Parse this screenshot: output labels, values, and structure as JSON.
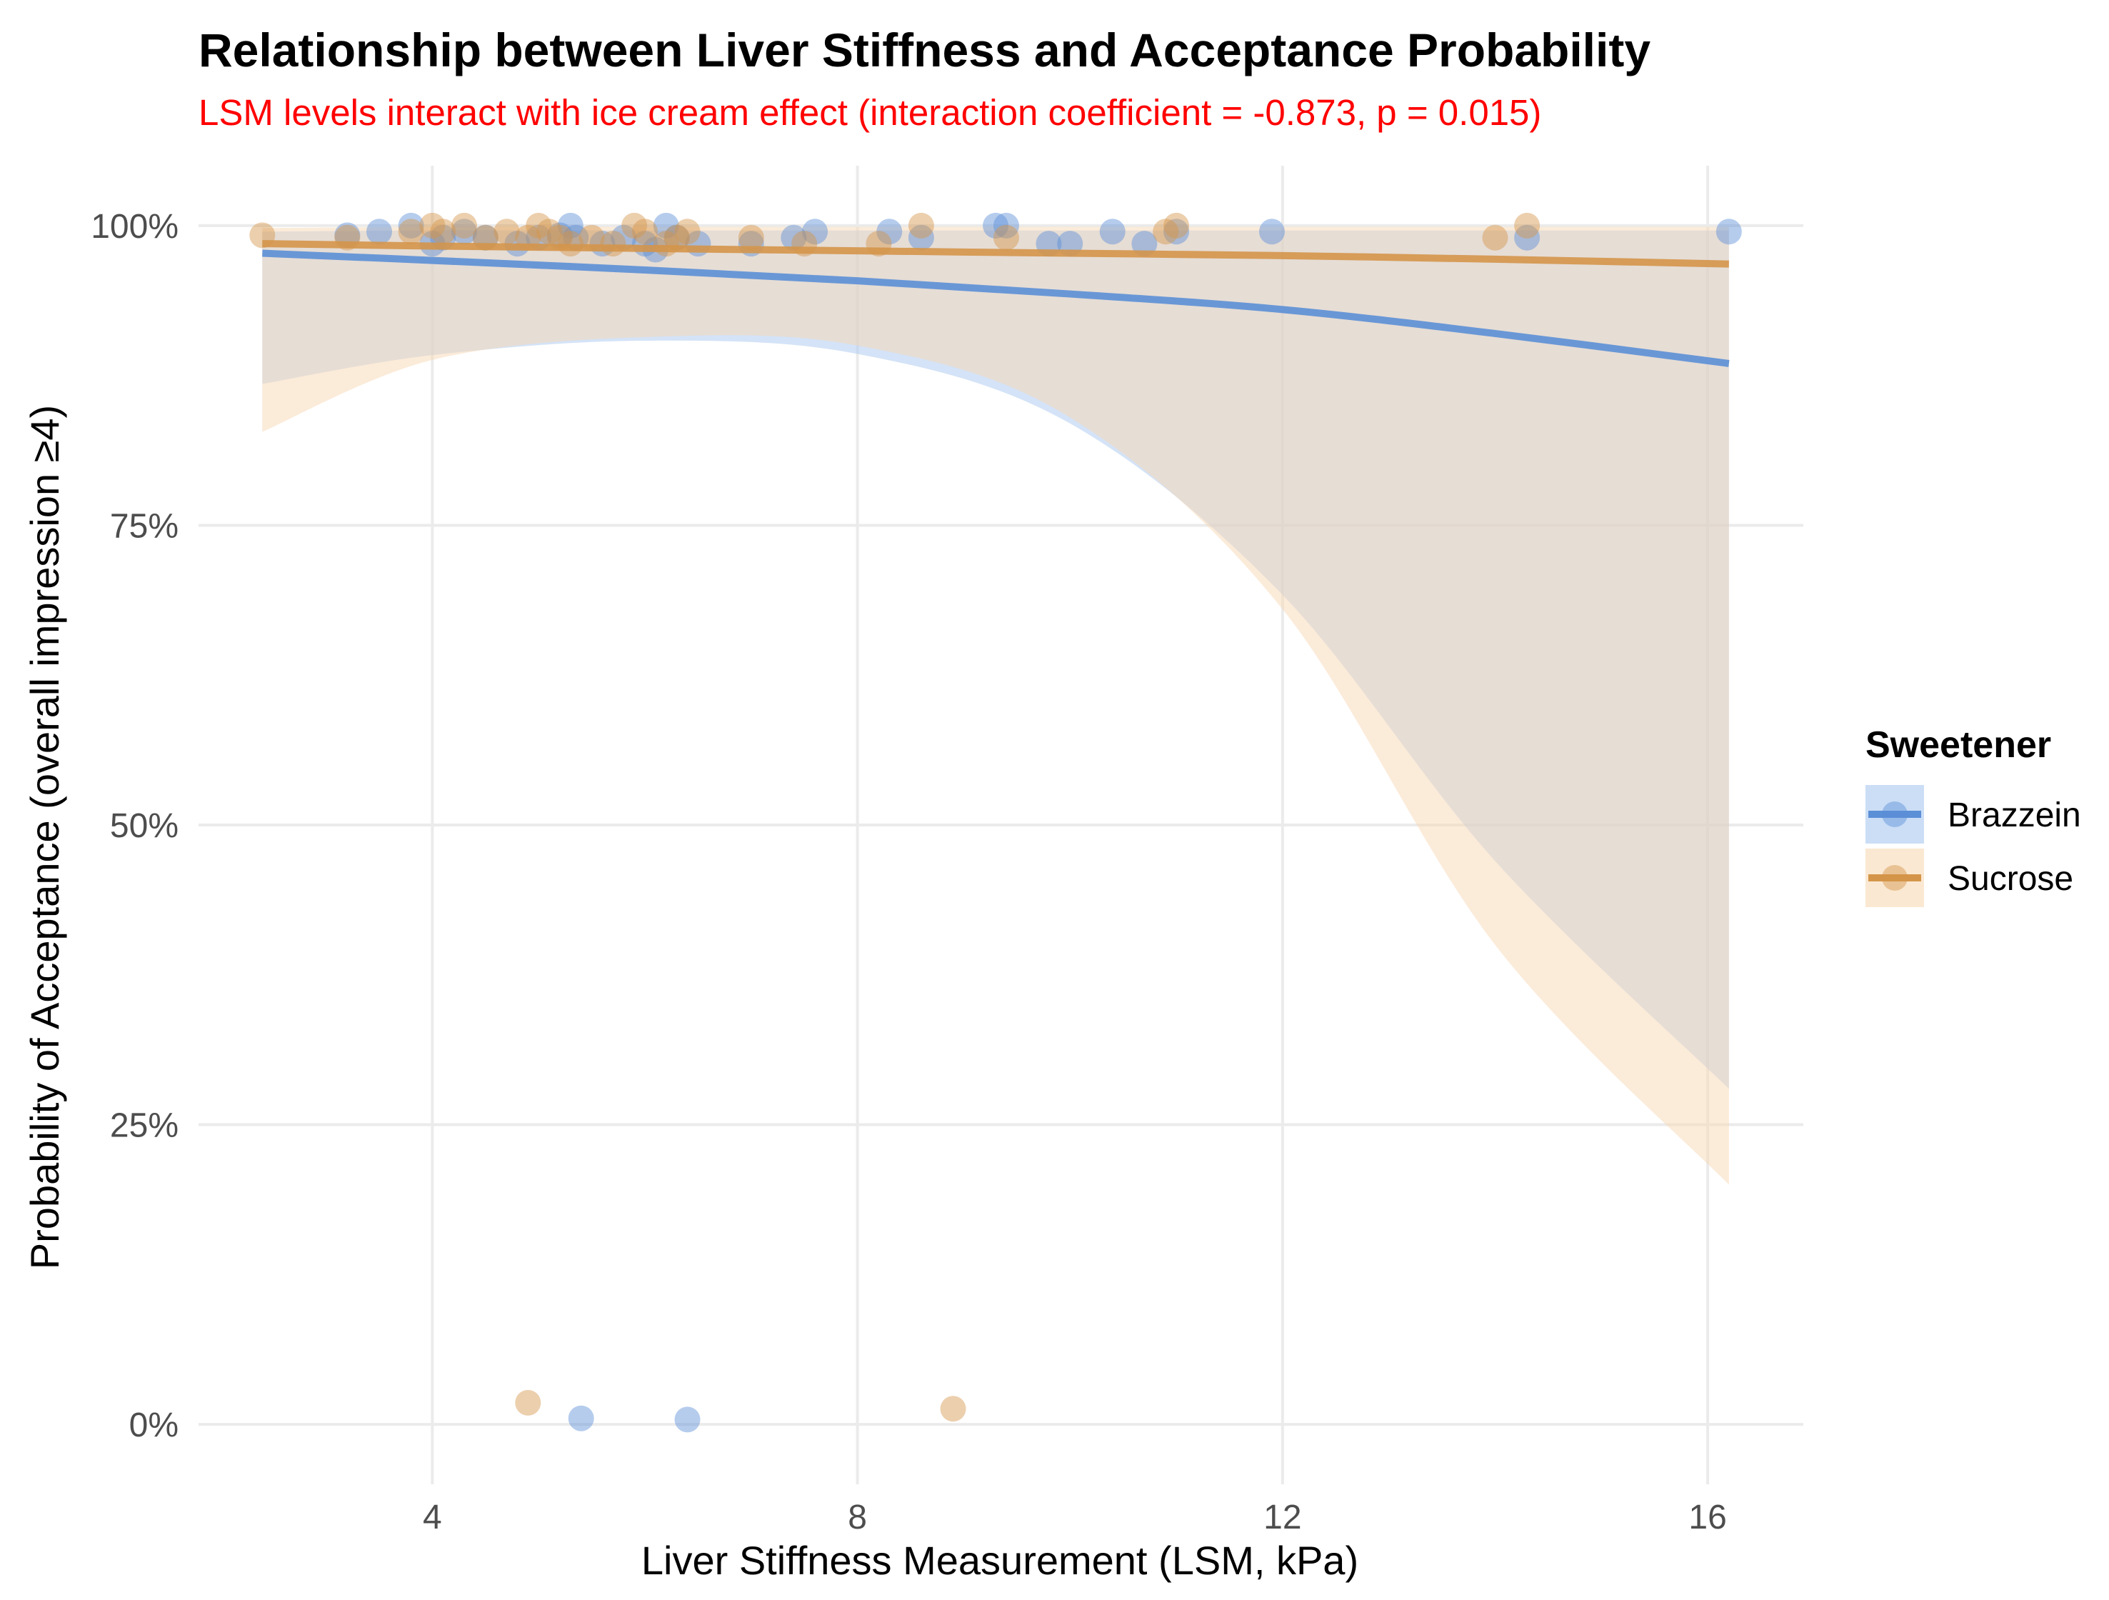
{
  "chart_data": {
    "type": "scatter",
    "title": "Relationship between Liver Stiffness and Acceptance Probability",
    "subtitle": "LSM levels interact with ice cream effect (interaction coefficient = -0.873, p = 0.015)",
    "xlabel": "Liver Stiffness Measurement (LSM, kPa)",
    "ylabel": "Probability of Acceptance (overall impression ≥4)",
    "xlim": [
      1.8,
      16.9
    ],
    "ylim": [
      -0.05,
      1.05
    ],
    "x_ticks": [
      4,
      8,
      12,
      16
    ],
    "x_tick_labels": [
      "4",
      "8",
      "12",
      "16"
    ],
    "y_ticks": [
      0,
      0.25,
      0.5,
      0.75,
      1.0
    ],
    "y_tick_labels": [
      "0%",
      "25%",
      "50%",
      "75%",
      "100%"
    ],
    "grid": true,
    "legend": {
      "title": "Sweetener",
      "position": "right"
    },
    "series": [
      {
        "name": "Brazzein",
        "color": "#5b8fd6",
        "fill_color": "#a9c8f0",
        "points": [
          [
            3.2,
            0.992
          ],
          [
            3.5,
            0.995
          ],
          [
            3.8,
            1.0
          ],
          [
            4.0,
            0.985
          ],
          [
            4.1,
            0.99
          ],
          [
            4.3,
            0.995
          ],
          [
            4.5,
            0.99
          ],
          [
            4.8,
            0.985
          ],
          [
            5.0,
            0.99
          ],
          [
            5.2,
            0.992
          ],
          [
            5.3,
            1.0
          ],
          [
            5.35,
            0.99
          ],
          [
            5.6,
            0.985
          ],
          [
            5.8,
            0.99
          ],
          [
            6.0,
            0.985
          ],
          [
            6.1,
            0.98
          ],
          [
            6.2,
            1.0
          ],
          [
            6.3,
            0.99
          ],
          [
            6.5,
            0.985
          ],
          [
            7.0,
            0.985
          ],
          [
            7.4,
            0.99
          ],
          [
            7.6,
            0.995
          ],
          [
            8.3,
            0.995
          ],
          [
            8.6,
            0.99
          ],
          [
            9.3,
            1.0
          ],
          [
            9.4,
            1.0
          ],
          [
            9.8,
            0.985
          ],
          [
            10.0,
            0.985
          ],
          [
            10.4,
            0.995
          ],
          [
            10.7,
            0.985
          ],
          [
            11.0,
            0.995
          ],
          [
            11.9,
            0.995
          ],
          [
            14.3,
            0.99
          ],
          [
            16.2,
            0.995
          ],
          [
            5.4,
            0.005
          ],
          [
            6.4,
            0.004
          ]
        ],
        "fit_x": [
          2.4,
          4,
          6,
          8,
          10,
          12,
          14,
          16.2
        ],
        "fit_y": [
          0.977,
          0.971,
          0.963,
          0.954,
          0.943,
          0.93,
          0.91,
          0.885
        ],
        "ci_lower": [
          0.868,
          0.892,
          0.904,
          0.893,
          0.835,
          0.692,
          0.47,
          0.28
        ],
        "ci_upper": [
          0.995,
          0.996,
          0.996,
          0.996,
          0.996,
          0.996,
          0.996,
          0.996
        ]
      },
      {
        "name": "Sucrose",
        "color": "#d4954a",
        "fill_color": "#f7d8b4",
        "points": [
          [
            2.4,
            0.992
          ],
          [
            3.2,
            0.99
          ],
          [
            3.8,
            0.995
          ],
          [
            4.0,
            1.0
          ],
          [
            4.1,
            0.995
          ],
          [
            4.3,
            1.0
          ],
          [
            4.5,
            0.99
          ],
          [
            4.7,
            0.995
          ],
          [
            4.9,
            0.99
          ],
          [
            5.0,
            1.0
          ],
          [
            5.1,
            0.995
          ],
          [
            5.2,
            0.99
          ],
          [
            5.3,
            0.985
          ],
          [
            5.5,
            0.99
          ],
          [
            5.7,
            0.985
          ],
          [
            5.9,
            1.0
          ],
          [
            6.0,
            0.995
          ],
          [
            6.2,
            0.985
          ],
          [
            6.3,
            0.99
          ],
          [
            6.4,
            0.995
          ],
          [
            7.0,
            0.99
          ],
          [
            7.5,
            0.985
          ],
          [
            8.2,
            0.985
          ],
          [
            8.6,
            1.0
          ],
          [
            9.4,
            0.99
          ],
          [
            10.9,
            0.995
          ],
          [
            11.0,
            1.0
          ],
          [
            14.0,
            0.99
          ],
          [
            14.3,
            1.0
          ],
          [
            4.9,
            0.018
          ],
          [
            8.9,
            0.013
          ]
        ],
        "fit_x": [
          2.4,
          4,
          6,
          8,
          10,
          12,
          14,
          16.2
        ],
        "fit_y": [
          0.985,
          0.983,
          0.981,
          0.979,
          0.977,
          0.975,
          0.972,
          0.968
        ],
        "ci_lower": [
          0.828,
          0.888,
          0.907,
          0.9,
          0.84,
          0.68,
          0.4,
          0.2
        ],
        "ci_upper": [
          0.998,
          0.999,
          0.999,
          0.999,
          0.999,
          0.999,
          0.999,
          0.999
        ]
      }
    ]
  }
}
